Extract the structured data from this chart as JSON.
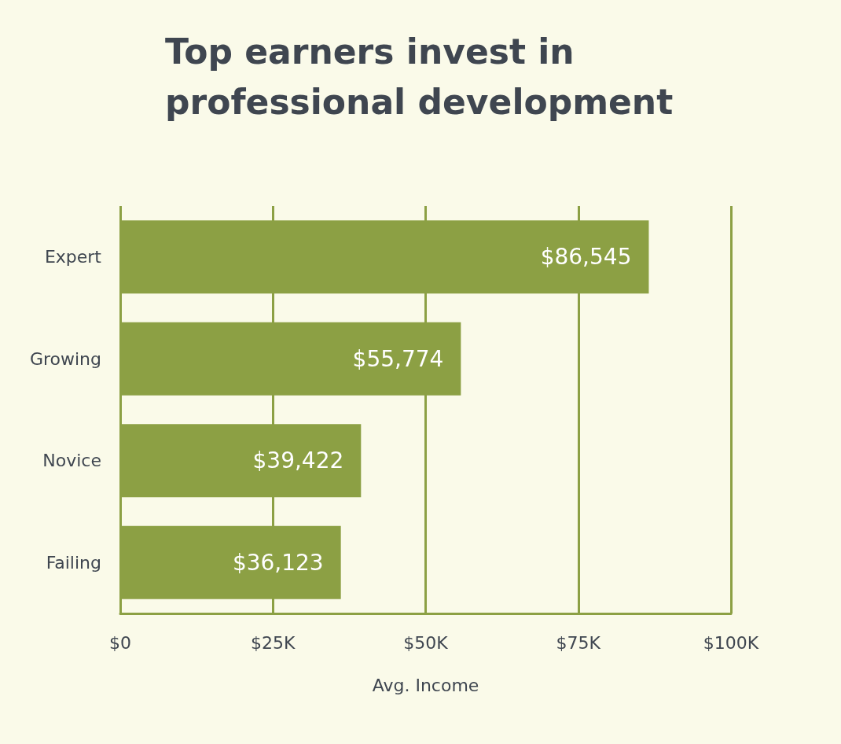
{
  "chart_data": {
    "type": "bar",
    "orientation": "horizontal",
    "title": "Top earners invest in\nprofessional development",
    "xlabel": "Avg. Income",
    "categories": [
      "Expert",
      "Growing",
      "Novice",
      "Failing"
    ],
    "values": [
      86545,
      55774,
      39422,
      36123
    ],
    "value_labels": [
      "$86,545",
      "$55,774",
      "$39,422",
      "$36,123"
    ],
    "color": "#8ca044",
    "xlim": [
      0,
      100000
    ],
    "xticks": [
      {
        "value": 0,
        "label": "$0"
      },
      {
        "value": 25000,
        "label": "$25K"
      },
      {
        "value": 50000,
        "label": "$50K"
      },
      {
        "value": 75000,
        "label": "$75K"
      },
      {
        "value": 100000,
        "label": "$100K"
      }
    ],
    "grid": "x"
  }
}
